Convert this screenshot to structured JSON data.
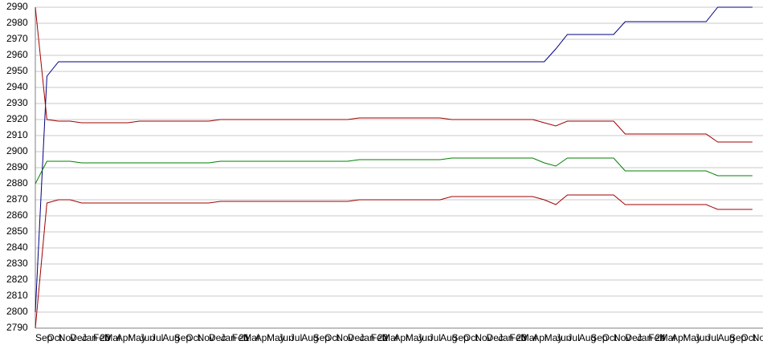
{
  "chart_data": {
    "type": "line",
    "categories": [
      "Sep",
      "Oct",
      "Nov",
      "Dec",
      "Jan 20",
      "Feb",
      "Mar",
      "Apr",
      "May",
      "Jun",
      "Jul",
      "Aug",
      "Sep",
      "Oct",
      "Nov",
      "Dec",
      "Jan 21",
      "Feb",
      "Mar",
      "Apr",
      "May",
      "Jun",
      "Jul",
      "Aug",
      "Sep",
      "Oct",
      "Nov",
      "Dec",
      "Jan 22",
      "Feb",
      "Mar",
      "Apr",
      "May",
      "Jun",
      "Jul",
      "Aug",
      "Sep",
      "Oct",
      "Nov",
      "Dec",
      "Jan 23",
      "Feb",
      "Mar",
      "Apr",
      "May",
      "Jun",
      "Jul",
      "Aug",
      "Sep",
      "Oct",
      "Nov",
      "Dec",
      "Jan 24",
      "Feb",
      "Mar",
      "Apr",
      "May",
      "Jun",
      "Jul",
      "Aug",
      "Sep",
      "Oct",
      "Nov"
    ],
    "series": [
      {
        "color": "#000080",
        "values": [
          2800,
          2947,
          2956,
          2956,
          2956,
          2956,
          2956,
          2956,
          2956,
          2956,
          2956,
          2956,
          2956,
          2956,
          2956,
          2956,
          2956,
          2956,
          2956,
          2956,
          2956,
          2956,
          2956,
          2956,
          2956,
          2956,
          2956,
          2956,
          2956,
          2956,
          2956,
          2956,
          2956,
          2956,
          2956,
          2956,
          2956,
          2956,
          2956,
          2956,
          2956,
          2956,
          2956,
          2956,
          2956,
          2964,
          2973,
          2973,
          2973,
          2973,
          2973,
          2981,
          2981,
          2981,
          2981,
          2981,
          2981,
          2981,
          2981,
          2990,
          2990,
          2990,
          2990
        ]
      },
      {
        "color": "#a00000",
        "values": [
          2990,
          2920,
          2919,
          2919,
          2918,
          2918,
          2918,
          2918,
          2918,
          2919,
          2919,
          2919,
          2919,
          2919,
          2919,
          2919,
          2920,
          2920,
          2920,
          2920,
          2920,
          2920,
          2920,
          2920,
          2920,
          2920,
          2920,
          2920,
          2921,
          2921,
          2921,
          2921,
          2921,
          2921,
          2921,
          2921,
          2920,
          2920,
          2920,
          2920,
          2920,
          2920,
          2920,
          2920,
          2918,
          2916,
          2919,
          2919,
          2919,
          2919,
          2919,
          2911,
          2911,
          2911,
          2911,
          2911,
          2911,
          2911,
          2911,
          2906,
          2906,
          2906,
          2906
        ]
      },
      {
        "color": "#008000",
        "values": [
          2880,
          2894,
          2894,
          2894,
          2893,
          2893,
          2893,
          2893,
          2893,
          2893,
          2893,
          2893,
          2893,
          2893,
          2893,
          2893,
          2894,
          2894,
          2894,
          2894,
          2894,
          2894,
          2894,
          2894,
          2894,
          2894,
          2894,
          2894,
          2895,
          2895,
          2895,
          2895,
          2895,
          2895,
          2895,
          2895,
          2896,
          2896,
          2896,
          2896,
          2896,
          2896,
          2896,
          2896,
          2893,
          2891,
          2896,
          2896,
          2896,
          2896,
          2896,
          2888,
          2888,
          2888,
          2888,
          2888,
          2888,
          2888,
          2888,
          2885,
          2885,
          2885,
          2885
        ]
      },
      {
        "color": "#a00000",
        "values": [
          2790,
          2868,
          2870,
          2870,
          2868,
          2868,
          2868,
          2868,
          2868,
          2868,
          2868,
          2868,
          2868,
          2868,
          2868,
          2868,
          2869,
          2869,
          2869,
          2869,
          2869,
          2869,
          2869,
          2869,
          2869,
          2869,
          2869,
          2869,
          2870,
          2870,
          2870,
          2870,
          2870,
          2870,
          2870,
          2870,
          2872,
          2872,
          2872,
          2872,
          2872,
          2872,
          2872,
          2872,
          2870,
          2867,
          2873,
          2873,
          2873,
          2873,
          2873,
          2867,
          2867,
          2867,
          2867,
          2867,
          2867,
          2867,
          2867,
          2864,
          2864,
          2864,
          2864
        ]
      }
    ],
    "ylim": [
      2790,
      2990
    ],
    "yticks": [
      2790,
      2800,
      2810,
      2820,
      2830,
      2840,
      2850,
      2860,
      2870,
      2880,
      2890,
      2900,
      2910,
      2920,
      2930,
      2940,
      2950,
      2960,
      2970,
      2980,
      2990
    ],
    "grid": true
  }
}
